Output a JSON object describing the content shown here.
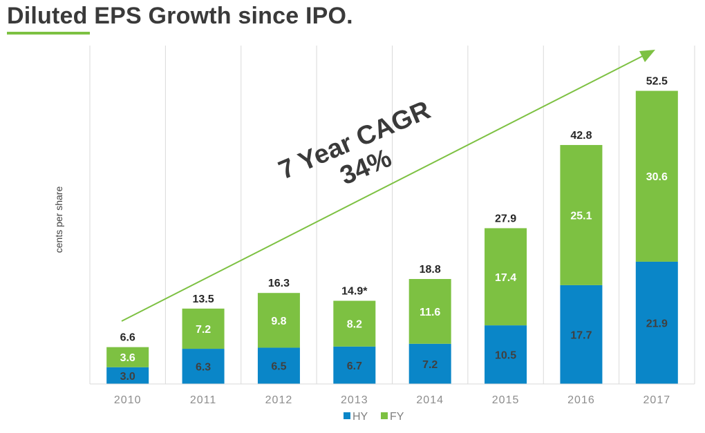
{
  "title": "Diluted EPS Growth since IPO.",
  "chart_data": {
    "type": "bar",
    "stacked": true,
    "categories": [
      "2010",
      "2011",
      "2012",
      "2013",
      "2014",
      "2015",
      "2016",
      "2017"
    ],
    "series": [
      {
        "name": "HY",
        "values": [
          3.0,
          6.3,
          6.5,
          6.7,
          7.2,
          10.5,
          17.7,
          21.9
        ],
        "labels": [
          "3.0",
          "6.3",
          "6.5",
          "6.7",
          "7.2",
          "10.5",
          "17.7",
          "21.9"
        ],
        "color": "#0a86c8"
      },
      {
        "name": "FY",
        "values": [
          3.6,
          7.2,
          9.8,
          8.2,
          11.6,
          17.4,
          25.1,
          30.6
        ],
        "labels": [
          "3.6",
          "7.2",
          "9.8",
          "8.2",
          "11.6",
          "17.4",
          "25.1",
          "30.6"
        ],
        "color": "#7dc142"
      }
    ],
    "totals": [
      "6.6",
      "13.5",
      "16.3",
      "14.9*",
      "18.8",
      "27.9",
      "42.8",
      "52.5"
    ],
    "ylabel": "cents per share",
    "ylim": [
      0,
      60
    ],
    "grid": "vertical",
    "legend": "bottom",
    "annotation": {
      "line1": "7 Year CAGR",
      "line2": "34%"
    },
    "colors": {
      "hy": "#0a86c8",
      "fy": "#7dc142",
      "arrow": "#7dc142",
      "grid": "#d9d9d9"
    }
  }
}
